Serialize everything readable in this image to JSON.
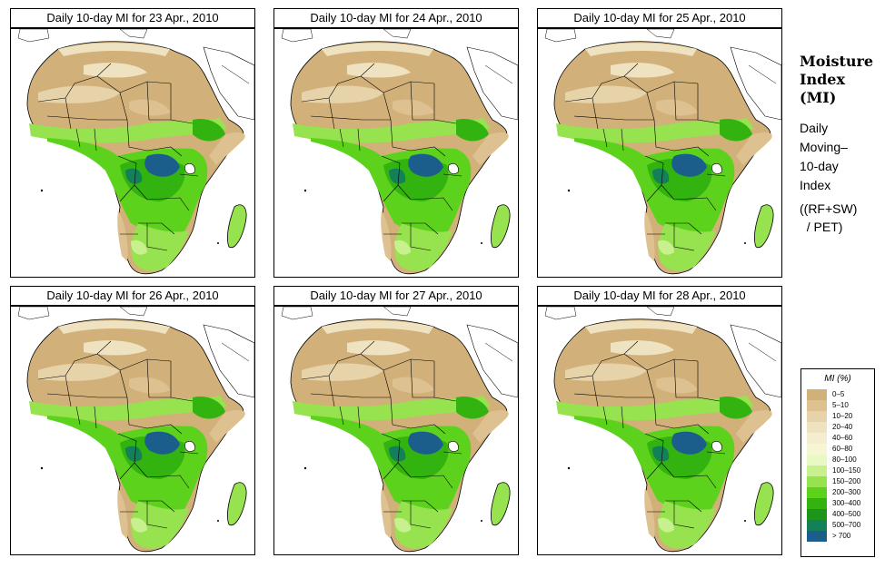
{
  "panels": [
    {
      "title": "Daily 10-day MI for  23 Apr., 2010"
    },
    {
      "title": "Daily 10-day MI for  24 Apr., 2010"
    },
    {
      "title": "Daily 10-day MI for  25 Apr., 2010"
    },
    {
      "title": "Daily 10-day MI for  26 Apr., 2010"
    },
    {
      "title": "Daily 10-day MI for  27 Apr., 2010"
    },
    {
      "title": "Daily 10-day MI for  28 Apr., 2010"
    }
  ],
  "side": {
    "heading": [
      "Moisture",
      "Index",
      "(MI)"
    ],
    "description": [
      "Daily",
      "Moving–",
      "10-day",
      "Index"
    ],
    "formula": [
      "((RF+SW)",
      "  / PET)"
    ]
  },
  "legend": {
    "title": "MI (%)",
    "items": [
      {
        "label": "0–5",
        "color": "#d2b07a"
      },
      {
        "label": "5–10",
        "color": "#ddc190"
      },
      {
        "label": "10–20",
        "color": "#e6d3aa"
      },
      {
        "label": "20–40",
        "color": "#efe2c0"
      },
      {
        "label": "40–60",
        "color": "#f4edcf"
      },
      {
        "label": "60–80",
        "color": "#f7f6d2"
      },
      {
        "label": "80–100",
        "color": "#e9f9c4"
      },
      {
        "label": "100–150",
        "color": "#c9f08e"
      },
      {
        "label": "150–200",
        "color": "#97e24f"
      },
      {
        "label": "200–300",
        "color": "#5dd21d"
      },
      {
        "label": "300–400",
        "color": "#33b30f"
      },
      {
        "label": "400–500",
        "color": "#1d9518"
      },
      {
        "label": "500–700",
        "color": "#14805a"
      },
      {
        "label": "> 700",
        "color": "#1b5e8c"
      }
    ]
  }
}
